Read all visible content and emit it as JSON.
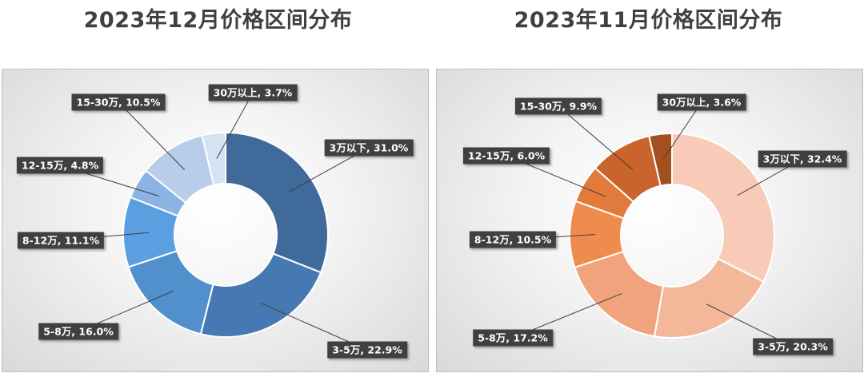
{
  "chart_data": [
    {
      "type": "pie",
      "title": "2023年12月价格区间分布",
      "categories": [
        "3万以下",
        "3-5万",
        "5-8万",
        "8-12万",
        "12-15万",
        "15-30万",
        "30万以上"
      ],
      "values": [
        31.0,
        22.9,
        16.0,
        11.1,
        4.8,
        10.5,
        3.7
      ],
      "data_labels": [
        "3万以下, 31.0%",
        "3-5万, 22.9%",
        "5-8万, 16.0%",
        "8-12万, 11.1%",
        "12-15万, 4.8%",
        "15-30万, 10.5%",
        "30万以上, 3.7%"
      ],
      "colors": [
        "#3f6a99",
        "#4679b1",
        "#5190cd",
        "#5a9fdf",
        "#8bb4e4",
        "#b7cdea",
        "#d6e1f1"
      ],
      "legend": "none"
    },
    {
      "type": "pie",
      "title": "2023年11月价格区间分布",
      "categories": [
        "3万以下",
        "3-5万",
        "5-8万",
        "8-12万",
        "12-15万",
        "15-30万",
        "30万以上"
      ],
      "values": [
        32.4,
        20.3,
        17.2,
        10.5,
        6.0,
        9.9,
        3.6
      ],
      "data_labels": [
        "3万以下, 32.4%",
        "3-5万, 20.3%",
        "5-8万, 17.2%",
        "8-12万, 10.5%",
        "12-15万, 6.0%",
        "15-30万, 9.9%",
        "30万以上, 3.6%"
      ],
      "colors": [
        "#f7cbb8",
        "#f3b89a",
        "#f0a37c",
        "#ee8b4d",
        "#e17a3a",
        "#c8642c",
        "#a35020"
      ],
      "legend": "none"
    }
  ]
}
